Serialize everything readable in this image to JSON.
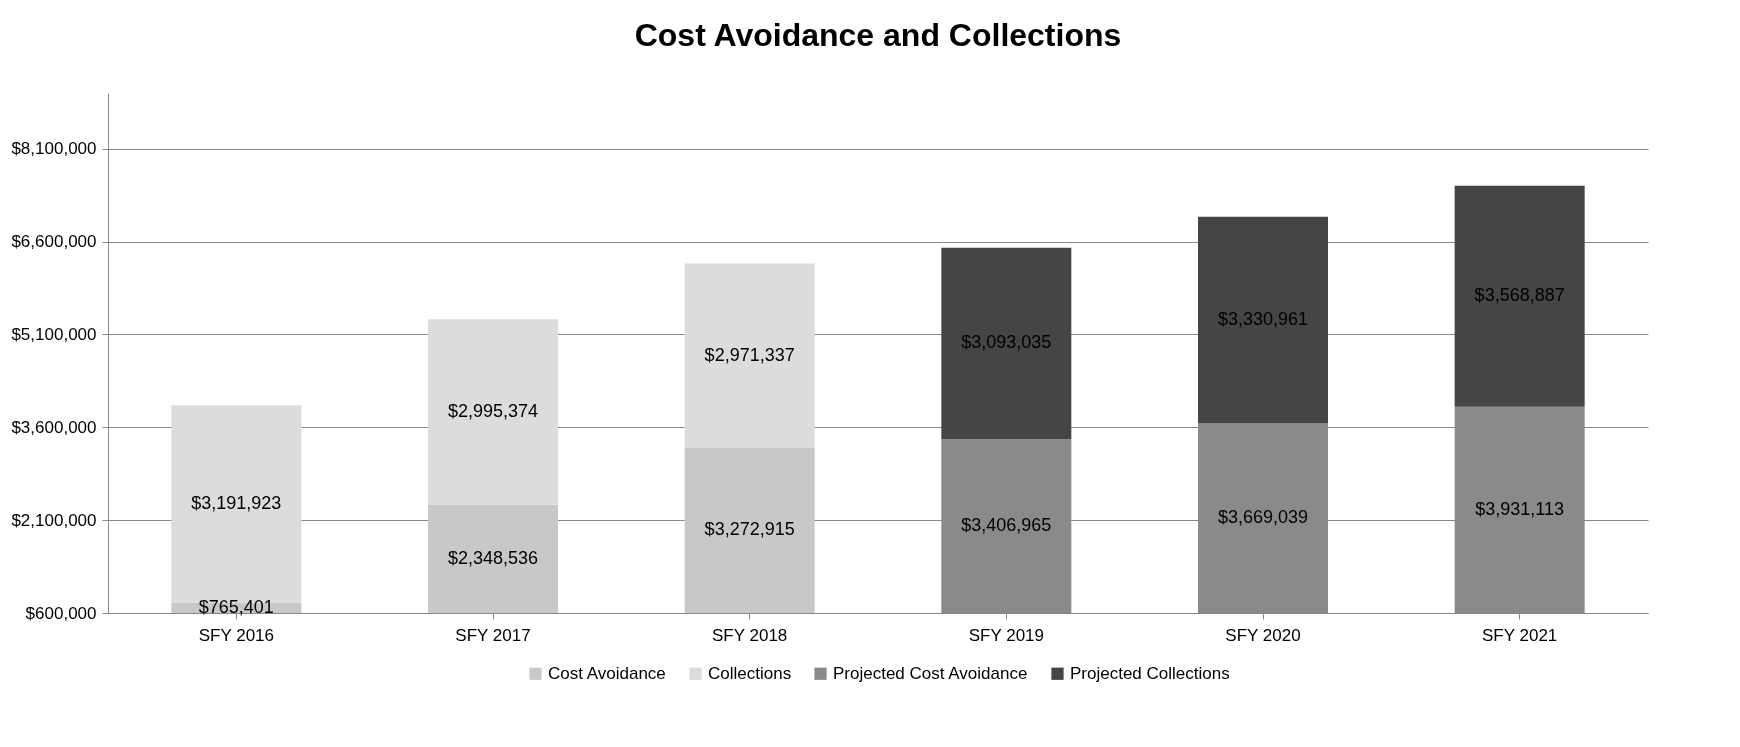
{
  "chart_data": {
    "type": "bar",
    "title": "Cost Avoidance and Collections",
    "stacked": true,
    "categories": [
      "SFY 2016",
      "SFY 2017",
      "SFY 2018",
      "SFY 2019",
      "SFY 2020",
      "SFY 2021"
    ],
    "series": [
      {
        "name": "Cost Avoidance",
        "color": "#c8c8c8",
        "values": [
          765401,
          2348536,
          3272915,
          null,
          null,
          null
        ],
        "value_labels": [
          "$765,401",
          "$2,348,536",
          "$3,272,915",
          null,
          null,
          null
        ]
      },
      {
        "name": "Collections",
        "color": "#dcdcdc",
        "values": [
          3191923,
          2995374,
          2971337,
          null,
          null,
          null
        ],
        "value_labels": [
          "$3,191,923",
          "$2,995,374",
          "$2,971,337",
          null,
          null,
          null
        ]
      },
      {
        "name": "Projected Cost Avoidance",
        "color": "#8a8a8a",
        "values": [
          null,
          null,
          null,
          3406965,
          3669039,
          3931113
        ],
        "value_labels": [
          null,
          null,
          null,
          "$3,406,965",
          "$3,669,039",
          "$3,931,113"
        ]
      },
      {
        "name": "Projected Collections",
        "color": "#454545",
        "values": [
          null,
          null,
          null,
          3093035,
          3330961,
          3568887
        ],
        "value_labels": [
          null,
          null,
          null,
          "$3,093,035",
          "$3,330,961",
          "$3,568,887"
        ]
      }
    ],
    "ylim": [
      600000,
      9000000
    ],
    "yticks": [
      {
        "value": 600000,
        "label": "$600,000"
      },
      {
        "value": 2100000,
        "label": "$2,100,000"
      },
      {
        "value": 3600000,
        "label": "$3,600,000"
      },
      {
        "value": 5100000,
        "label": "$5,100,000"
      },
      {
        "value": 6600000,
        "label": "$6,600,000"
      },
      {
        "value": 8100000,
        "label": "$8,100,000"
      }
    ],
    "grid": "y",
    "legend": "bottom"
  }
}
